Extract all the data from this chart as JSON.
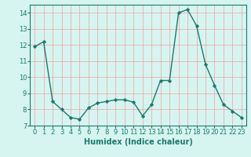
{
  "x": [
    0,
    1,
    2,
    3,
    4,
    5,
    6,
    7,
    8,
    9,
    10,
    11,
    12,
    13,
    14,
    15,
    16,
    17,
    18,
    19,
    20,
    21,
    22,
    23
  ],
  "y": [
    11.9,
    12.2,
    8.5,
    8.0,
    7.5,
    7.4,
    8.1,
    8.4,
    8.5,
    8.6,
    8.6,
    8.45,
    7.6,
    8.3,
    9.8,
    9.8,
    14.0,
    14.2,
    13.2,
    10.8,
    9.5,
    8.3,
    7.9,
    7.5
  ],
  "line_color": "#1a7a6e",
  "bg_color": "#d6f5f0",
  "grid_color": "#f0a0a0",
  "xlabel": "Humidex (Indice chaleur)",
  "ylim": [
    7,
    14.5
  ],
  "xlim": [
    -0.5,
    23.5
  ],
  "yticks": [
    7,
    8,
    9,
    10,
    11,
    12,
    13,
    14
  ],
  "xticks": [
    0,
    1,
    2,
    3,
    4,
    5,
    6,
    7,
    8,
    9,
    10,
    11,
    12,
    13,
    14,
    15,
    16,
    17,
    18,
    19,
    20,
    21,
    22,
    23
  ],
  "marker": "D",
  "markersize": 2.2,
  "linewidth": 1.0,
  "tick_fontsize": 6.0,
  "xlabel_fontsize": 7.0
}
